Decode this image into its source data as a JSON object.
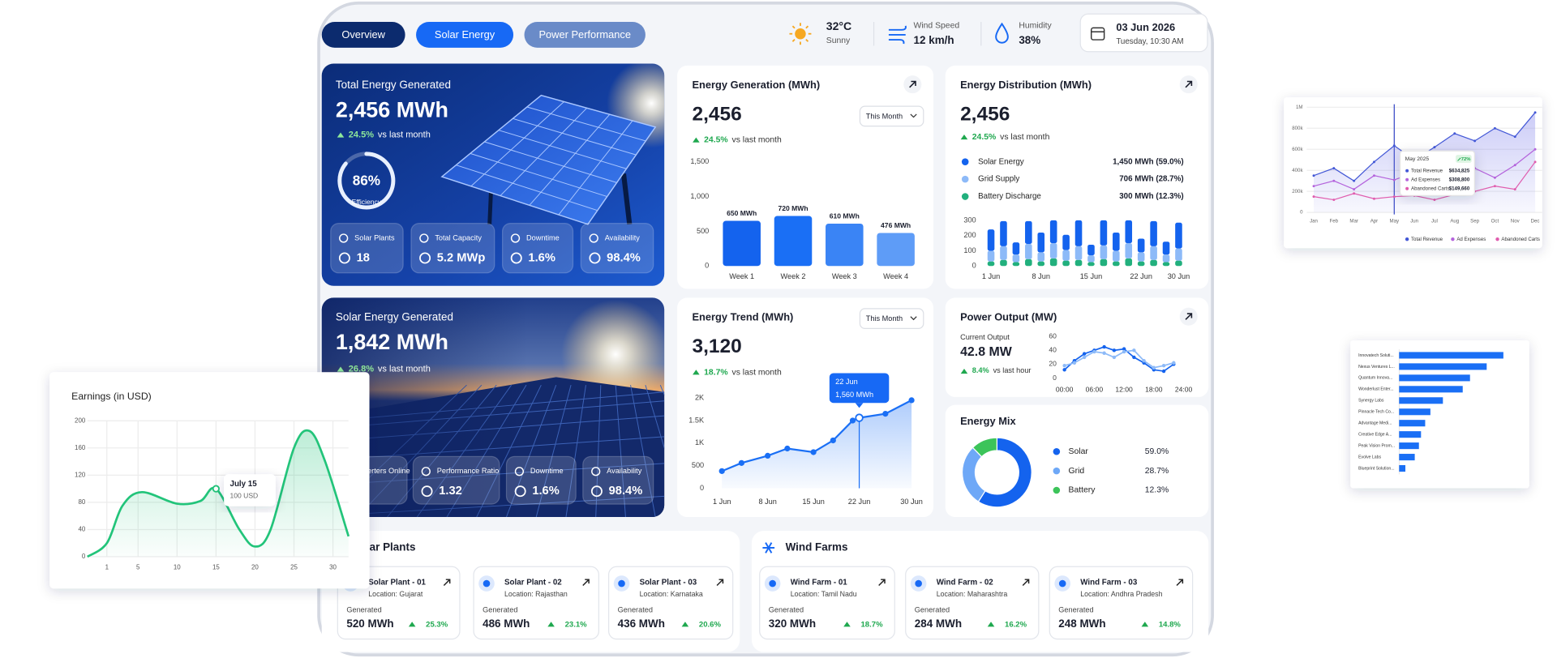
{
  "nav": {
    "tabs": [
      "Overview",
      "Solar Energy",
      "Power Performance"
    ]
  },
  "weather": {
    "temperature": "32°C",
    "condition": "Sunny",
    "wind_label": "Wind Speed",
    "wind": "12 km/h",
    "humidity_label": "Humidity",
    "humidity": "38%"
  },
  "date": {
    "date": "03 Jun 2026",
    "time": "Tuesday, 10:30 AM"
  },
  "total_energy": {
    "title": "Total Energy Generated",
    "value": "2,456 MWh",
    "change": "24.5%",
    "change_text": "vs last month",
    "gauge": {
      "value": 86,
      "label": "86%",
      "caption": "Efficiency"
    },
    "stats": [
      {
        "label": "Solar Plants",
        "value": "18"
      },
      {
        "label": "Total Capacity",
        "value": "5.2 MWp"
      },
      {
        "label": "Downtime",
        "value": "1.6%"
      },
      {
        "label": "Availability",
        "value": "98.4%"
      }
    ]
  },
  "solar_energy": {
    "title": "Solar Energy Generated",
    "value": "1,842 MWh",
    "change": "26.8%",
    "change_text": "vs last month",
    "stats": [
      {
        "label": "Inverters Online"
      },
      {
        "label": "Performance Ratio",
        "value": "1.32"
      },
      {
        "label": "Downtime",
        "value": "1.6%"
      },
      {
        "label": "Availability",
        "value": "98.4%"
      }
    ]
  },
  "solar_plants": {
    "title": "Solar Plants",
    "items": [
      {
        "name": "Solar Plant - 01",
        "location": "Location: Gujarat",
        "generated_label": "Generated",
        "value": "520 MWh",
        "change": "25.3%"
      },
      {
        "name": "Solar Plant - 02",
        "location": "Location: Rajasthan",
        "generated_label": "Generated",
        "value": "486 MWh",
        "change": "23.1%"
      },
      {
        "name": "Solar Plant - 03",
        "location": "Location: Karnataka",
        "generated_label": "Generated",
        "value": "436 MWh",
        "change": "20.6%"
      }
    ]
  },
  "wind_farms": {
    "title": "Wind Farms",
    "items": [
      {
        "name": "Wind Farm - 01",
        "location": "Location: Tamil Nadu",
        "generated_label": "Generated",
        "value": "320 MWh",
        "change": "18.7%"
      },
      {
        "name": "Wind Farm - 02",
        "location": "Location: Maharashtra",
        "generated_label": "Generated",
        "value": "284 MWh",
        "change": "16.2%"
      },
      {
        "name": "Wind Farm - 03",
        "location": "Location: Andhra Pradesh",
        "generated_label": "Generated",
        "value": "248 MWh",
        "change": "14.8%"
      }
    ]
  },
  "chart_data": [
    {
      "type": "bar",
      "title": "Energy Generation (MWh)",
      "value": "2,456",
      "change": "24.5%",
      "change_text": "vs last month",
      "dropdown": "This Month",
      "categories": [
        "Week 1",
        "Week 2",
        "Week 3",
        "Week 4"
      ],
      "values": [
        650,
        720,
        610,
        476
      ],
      "value_labels": [
        "650 MWh",
        "720 MWh",
        "610 MWh",
        "476 MWh"
      ],
      "colors": [
        "#1463ee",
        "#1a6ff5",
        "#3a84f5",
        "#5e9cf7"
      ],
      "ylim": [
        0,
        1500
      ],
      "yticks": [
        0,
        500,
        {
          "value": 1000,
          "label": "1,000"
        },
        {
          "value": 1500,
          "label": "1,500"
        }
      ]
    },
    {
      "type": "stacked_bar",
      "title": "Energy Distribution (MWh)",
      "value": "2,456",
      "change": "24.5%",
      "change_text": "vs last month",
      "categories": [
        "1 Jun",
        null,
        null,
        null,
        "8 Jun",
        null,
        null,
        null,
        "15 Jun",
        null,
        null,
        null,
        "22 Jun",
        null,
        null,
        "30 Jun"
      ],
      "series": [
        {
          "name": "Battery Discharge",
          "total": "300 MWh (12.3%)",
          "color": "#22b07d",
          "values": [
            30,
            40,
            25,
            45,
            30,
            50,
            35,
            40,
            25,
            45,
            30,
            50,
            30,
            40,
            25,
            35
          ]
        },
        {
          "name": "Grid Supply",
          "total": "706 MWh (28.7%)",
          "color": "#8dbaf8",
          "values": [
            70,
            90,
            50,
            100,
            60,
            100,
            70,
            90,
            45,
            90,
            70,
            100,
            60,
            90,
            50,
            80
          ]
        },
        {
          "name": "Solar Energy",
          "total": "1,450 MWh (59.0%)",
          "color": "#1463ee",
          "values": [
            140,
            165,
            80,
            150,
            130,
            150,
            100,
            170,
            70,
            165,
            120,
            150,
            90,
            165,
            85,
            170
          ]
        }
      ],
      "legend_order": [
        2,
        1,
        0
      ],
      "ylim": [
        0,
        300
      ],
      "yticks": [
        0,
        100,
        200,
        300
      ]
    },
    {
      "type": "area",
      "title": "Energy Trend (MWh)",
      "value": "3,120",
      "change": "18.7%",
      "change_text": "vs last month",
      "dropdown": "This Month",
      "x": [
        1,
        4,
        8,
        11,
        15,
        18,
        21,
        22,
        26,
        30
      ],
      "values": [
        380,
        560,
        720,
        880,
        800,
        1060,
        1500,
        1560,
        1650,
        1950
      ],
      "color": "#1a6ff5",
      "xlim": [
        1,
        30
      ],
      "xticks": [
        {
          "value": 1,
          "label": "1 Jun"
        },
        {
          "value": 8,
          "label": "8 Jun"
        },
        {
          "value": 15,
          "label": "15 Jun"
        },
        {
          "value": 22,
          "label": "22 Jun"
        },
        {
          "value": 30,
          "label": "30 Jun"
        }
      ],
      "ylim": [
        0,
        2000
      ],
      "yticks": [
        0,
        500,
        {
          "value": 1000,
          "label": "1K"
        },
        {
          "value": 1500,
          "label": "1.5K"
        },
        {
          "value": 2000,
          "label": "2K"
        }
      ],
      "tooltip": {
        "title": "22 Jun",
        "value": "1,560 MWh",
        "index": 7
      }
    },
    {
      "type": "line",
      "title": "Power Output (MW)",
      "current_label": "Current Output",
      "current": "42.8 MW",
      "change": "8.4%",
      "change_text": "vs last hour",
      "x": [
        0,
        2,
        4,
        6,
        8,
        10,
        12,
        14,
        16,
        18,
        20,
        22
      ],
      "series": [
        {
          "color": "#1463ee",
          "values": [
            12,
            25,
            35,
            40,
            45,
            40,
            42,
            30,
            22,
            12,
            10,
            20
          ]
        },
        {
          "color": "#8dbaf8",
          "values": [
            18,
            22,
            30,
            38,
            36,
            30,
            38,
            40,
            25,
            15,
            18,
            22
          ]
        }
      ],
      "xlim": [
        0,
        24
      ],
      "xticks": [
        {
          "value": 0,
          "label": "00:00"
        },
        {
          "value": 6,
          "label": "06:00"
        },
        {
          "value": 12,
          "label": "12:00"
        },
        {
          "value": 18,
          "label": "18:00"
        },
        {
          "value": 24,
          "label": "24:00"
        }
      ],
      "ylim": [
        0,
        60
      ],
      "yticks": [
        0,
        20,
        40,
        60
      ]
    },
    {
      "type": "pie",
      "title": "Energy Mix",
      "categories": [
        "Solar",
        "Grid",
        "Battery"
      ],
      "values": [
        59.0,
        28.7,
        12.3
      ],
      "value_labels": [
        "59.0%",
        "28.7%",
        "12.3%"
      ],
      "colors": [
        "#1463ee",
        "#6ea8f7",
        "#3cc45a"
      ],
      "donut": true
    },
    {
      "type": "area",
      "title": "Earnings (in USD)",
      "x": [
        -1.5,
        1,
        3,
        5.5,
        10,
        13,
        15,
        18,
        20,
        22,
        25,
        27,
        29,
        32
      ],
      "values": [
        0,
        20,
        75,
        95,
        78,
        82,
        100,
        40,
        15,
        40,
        160,
        185,
        140,
        30
      ],
      "color": "#22c47a",
      "xlim": [
        -1.5,
        32
      ],
      "xticks": [
        1,
        5,
        10,
        15,
        20,
        25,
        30
      ],
      "ylim": [
        0,
        200
      ],
      "yticks": [
        0,
        40,
        80,
        120,
        160,
        200
      ],
      "grid": true,
      "tooltip": {
        "title": "July 15",
        "value": "100 USD",
        "index": 6
      }
    },
    {
      "type": "line",
      "categories": [
        "Jan",
        "Feb",
        "Mar",
        "Apr",
        "May",
        "Jun",
        "Jul",
        "Aug",
        "Sep",
        "Oct",
        "Nov",
        "Dec"
      ],
      "series": [
        {
          "name": "Total Revenue",
          "color": "#4257d6",
          "values": [
            350000,
            420000,
            300000,
            480000,
            634825,
            500000,
            620000,
            750000,
            680000,
            800000,
            720000,
            950000
          ]
        },
        {
          "name": "Ad Expenses",
          "color": "#b463dc",
          "values": [
            250000,
            300000,
            220000,
            350000,
            308800,
            380000,
            300000,
            350000,
            420000,
            330000,
            450000,
            600000
          ]
        },
        {
          "name": "Abandoned Carts",
          "color": "#e05cae",
          "values": [
            150000,
            120000,
            180000,
            130000,
            149660,
            160000,
            120000,
            170000,
            200000,
            250000,
            220000,
            480000
          ]
        }
      ],
      "ylim": [
        0,
        1000000
      ],
      "yticks": [
        0,
        {
          "value": 200000,
          "label": "200k"
        },
        {
          "value": 400000,
          "label": "400k"
        },
        {
          "value": 600000,
          "label": "600k"
        },
        {
          "value": 800000,
          "label": "800k"
        },
        {
          "value": 1000000,
          "label": "1M"
        }
      ],
      "grid": true,
      "tooltip": {
        "title": "May 2025",
        "badge": "72%",
        "index": 4,
        "value_labels": [
          "$634,825",
          "$308,800",
          "$149,660"
        ]
      }
    },
    {
      "type": "barh",
      "categories": [
        "Innovatech Soluti...",
        "Nexus Ventures L...",
        "Quantum Innova...",
        "Wonderlust Enter...",
        "Synergy Labs",
        "Pinnacle Tech Co...",
        "Advantage Medi...",
        "Creative Edge A...",
        "Peak Vision Prom...",
        "Evolve Labs",
        "Blueprint Solution..."
      ],
      "values": [
        100,
        84,
        68,
        61,
        42,
        30,
        25,
        21,
        19,
        15,
        6
      ],
      "xlim": [
        0,
        100
      ],
      "color": "#1a6ff5"
    }
  ]
}
